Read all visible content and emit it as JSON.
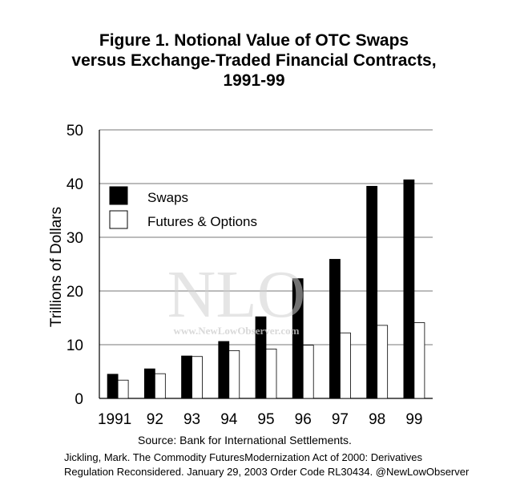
{
  "title_lines": [
    "Figure 1.  Notional Value of OTC Swaps",
    "versus Exchange-Traded Financial Contracts,",
    "1991-99"
  ],
  "source": "Source:  Bank for International Settlements.",
  "caption_lines": [
    "Jickling, Mark. The Commodity FuturesModernization Act of 2000: Derivatives",
    "Regulation Reconsidered. January 29, 2003 Order Code RL30434. @NewLowObserver"
  ],
  "watermark": {
    "logo": "NLO",
    "url": "www.NewLowObserver.com"
  },
  "colors": {
    "swaps": "#000000",
    "futures": "#ffffff",
    "grid": "#777777"
  },
  "chart_data": {
    "type": "bar",
    "categories": [
      "1991",
      "92",
      "93",
      "94",
      "95",
      "96",
      "97",
      "98",
      "99"
    ],
    "series": [
      {
        "name": "Swaps",
        "values": [
          4.5,
          5.5,
          7.9,
          10.6,
          15.2,
          22.3,
          25.9,
          39.5,
          40.7
        ]
      },
      {
        "name": "Futures & Options",
        "values": [
          3.4,
          4.6,
          7.8,
          8.9,
          9.2,
          9.9,
          12.2,
          13.6,
          14.1
        ]
      }
    ],
    "xlabel": "",
    "ylabel": "Trillions of Dollars",
    "ylim": [
      0,
      50
    ],
    "yticks": [
      0,
      10,
      20,
      30,
      40,
      50
    ],
    "grid": true,
    "legend_position": "top-left"
  }
}
